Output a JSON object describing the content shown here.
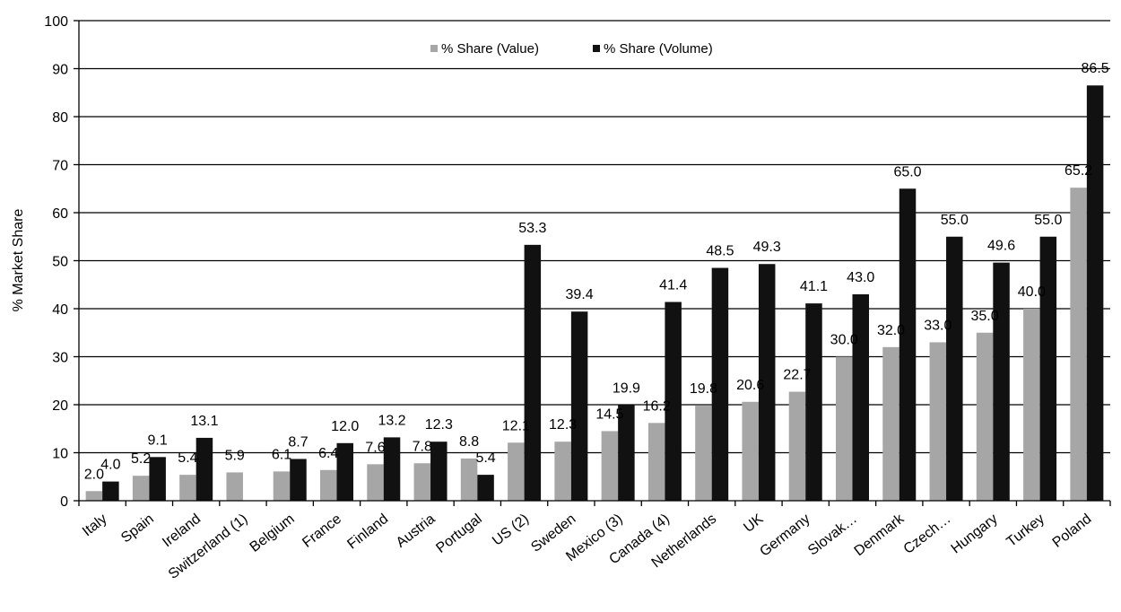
{
  "chart_data": {
    "type": "bar",
    "title": "",
    "xlabel": "",
    "ylabel": "% Market Share",
    "ylim": [
      0,
      100
    ],
    "yticks": [
      0,
      10,
      20,
      30,
      40,
      50,
      60,
      70,
      80,
      90,
      100
    ],
    "grid": "horizontal",
    "legend_position": "top-center",
    "categories": [
      "Italy",
      "Spain",
      "Ireland",
      "Switzerland (1)",
      "Belgium",
      "France",
      "Finland",
      "Austria",
      "Portugal",
      "US (2)",
      "Sweden",
      "Mexico (3)",
      "Canada (4)",
      "Netherlands",
      "UK",
      "Germany",
      "Slovak…",
      "Denmark",
      "Czech…",
      "Hungary",
      "Turkey",
      "Poland"
    ],
    "series": [
      {
        "name": "% Share (Value)",
        "color": "#a6a6a6",
        "values": [
          2.0,
          5.2,
          5.4,
          5.9,
          6.1,
          6.4,
          7.6,
          7.8,
          8.8,
          12.1,
          12.3,
          14.5,
          16.2,
          19.8,
          20.6,
          22.7,
          30.0,
          32.0,
          33.0,
          35.0,
          40.0,
          65.2
        ],
        "labels": [
          "2.0",
          "5.2",
          "5.4",
          "5.9",
          "6.1",
          "6.4",
          "7.6",
          "7.8",
          "8.8",
          "12.1",
          "12.3",
          "14.5",
          "16.2",
          "19.8",
          "20.6",
          "22.7",
          "30.0",
          "32.0",
          "33.0",
          "35.0",
          "40.0",
          "65.2"
        ]
      },
      {
        "name": "% Share (Volume)",
        "color": "#111111",
        "values": [
          4.0,
          9.1,
          13.1,
          null,
          8.7,
          12.0,
          13.2,
          12.3,
          5.4,
          53.3,
          39.4,
          19.9,
          41.4,
          48.5,
          49.3,
          41.1,
          43.0,
          65.0,
          55.0,
          49.6,
          55.0,
          86.5
        ],
        "labels": [
          "4.0",
          "9.1",
          "13.1",
          "",
          "8.7",
          "12.0",
          "13.2",
          "12.3",
          "5.4",
          "53.3",
          "39.4",
          "19.9",
          "41.4",
          "48.5",
          "49.3",
          "41.1",
          "43.0",
          "65.0",
          "55.0",
          "49.6",
          "55.0",
          "86.5"
        ]
      }
    ]
  }
}
